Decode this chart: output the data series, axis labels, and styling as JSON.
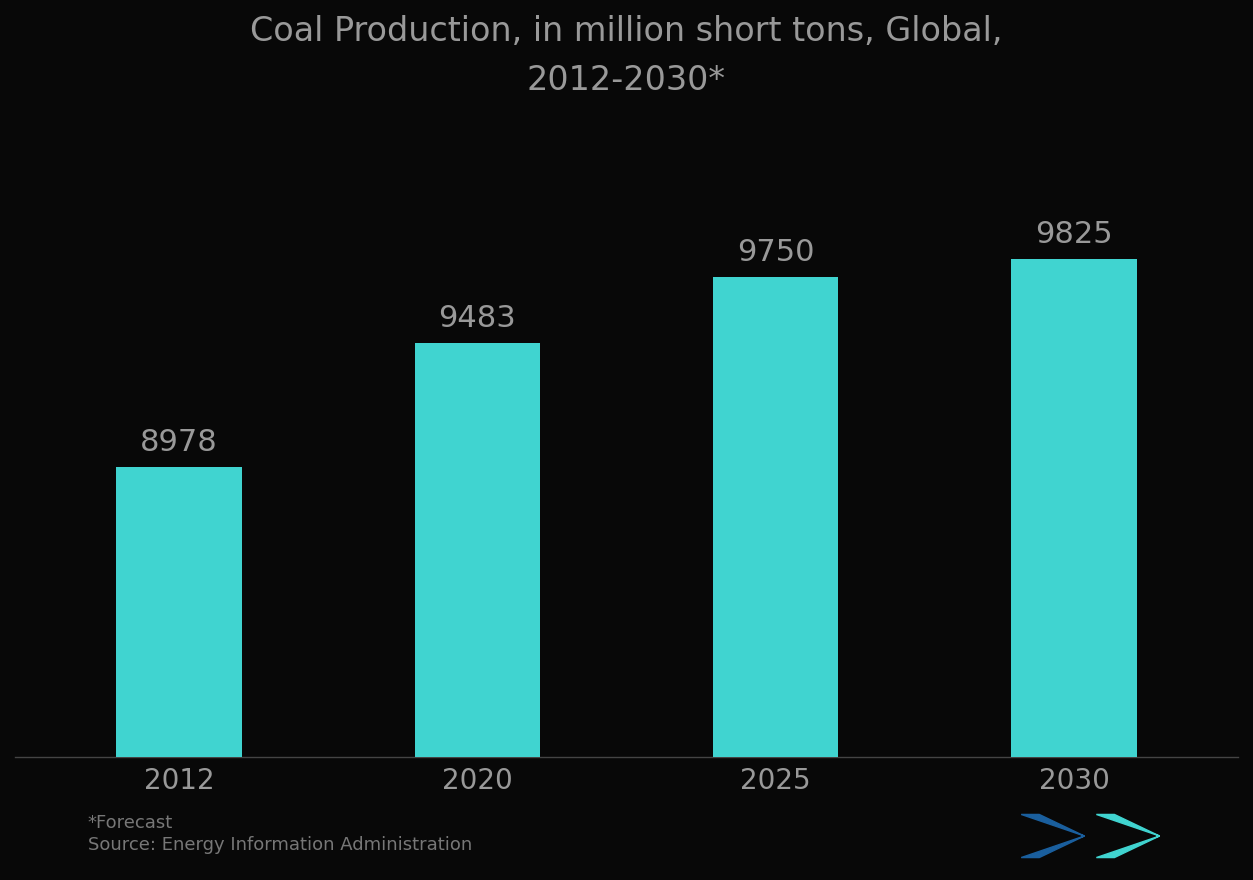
{
  "title": "Coal Production, in million short tons, Global,\n2012-2030*",
  "categories": [
    "2012",
    "2020",
    "2025",
    "2030"
  ],
  "values": [
    8978,
    9483,
    9750,
    9825
  ],
  "bar_color": "#40D4D0",
  "background_color": "#080808",
  "text_color": "#999999",
  "title_color": "#999999",
  "label_fontsize": 20,
  "title_fontsize": 24,
  "value_label_fontsize": 22,
  "footnote": "*Forecast",
  "source": "Source: Energy Information Administration",
  "ylim_min": 7800,
  "ylim_max": 10400,
  "bar_width": 0.42
}
